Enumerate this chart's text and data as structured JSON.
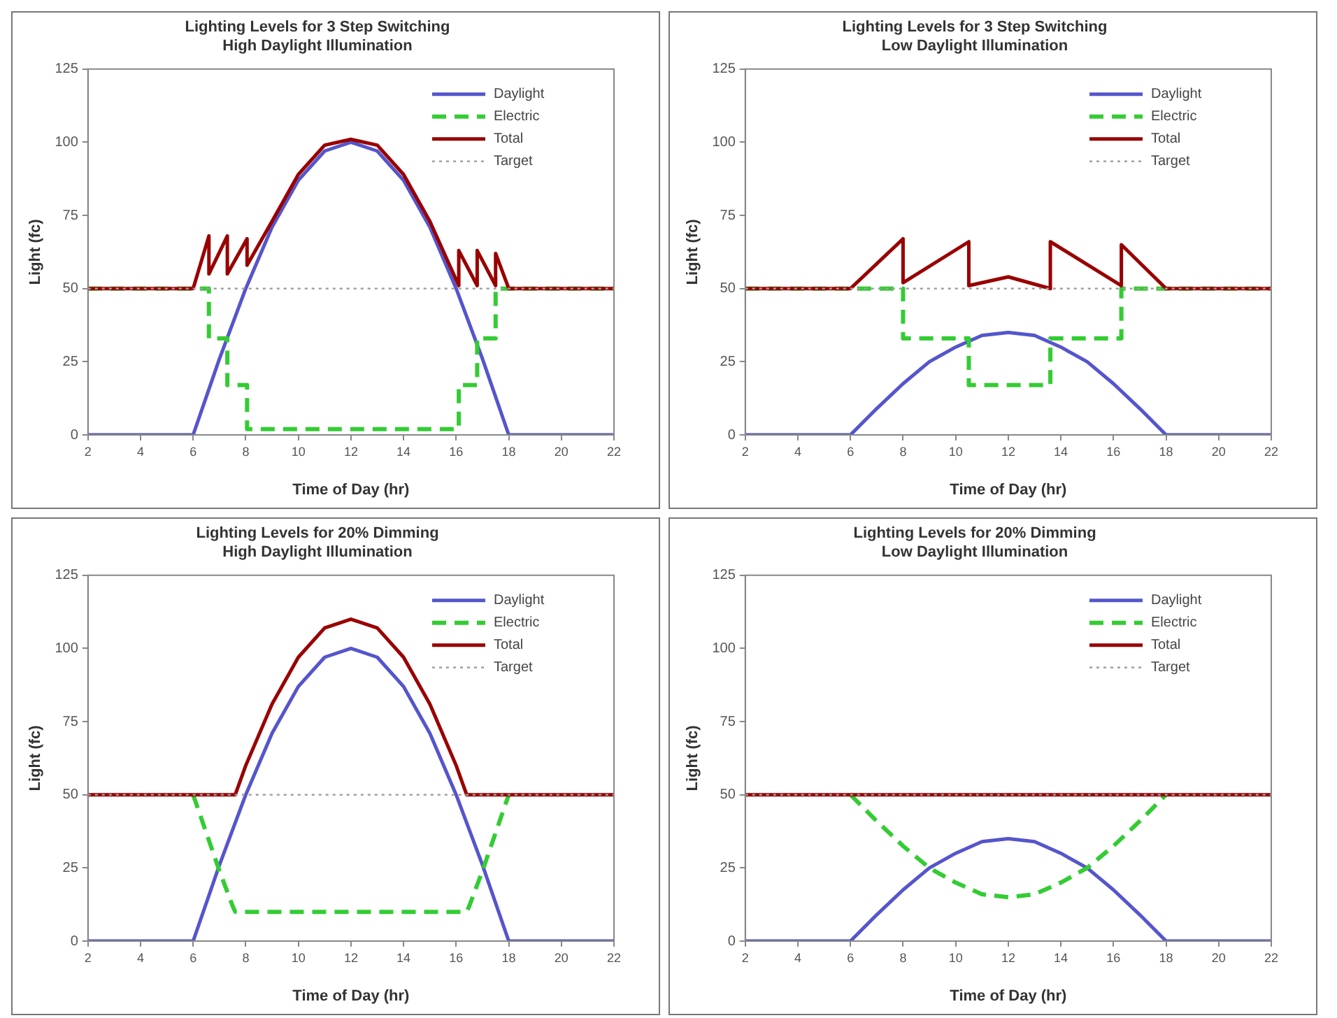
{
  "chart_data": [
    {
      "type": "line",
      "title": "Lighting Levels for 3 Step Switching",
      "subtitle": "High Daylight Illumination",
      "xlabel": "Time of Day (hr)",
      "ylabel": "Light (fc)",
      "xlim": [
        2,
        22
      ],
      "xticks": [
        2,
        4,
        6,
        8,
        10,
        12,
        14,
        16,
        18,
        20,
        22
      ],
      "ylim": [
        0,
        125
      ],
      "yticks": [
        0,
        25,
        50,
        75,
        100,
        125
      ],
      "legend": "top right",
      "series": [
        {
          "name": "Daylight",
          "color": "#5555cc",
          "line_style": "solid",
          "x": [
            2,
            6,
            7,
            8,
            9,
            10,
            11,
            12,
            13,
            14,
            15,
            16,
            17,
            18,
            22
          ],
          "values": [
            0,
            0,
            26,
            50,
            71,
            87,
            97,
            100,
            97,
            87,
            71,
            50,
            26,
            0,
            0
          ]
        },
        {
          "name": "Electric",
          "color": "#33cc33",
          "line_style": "dashed",
          "x": [
            2,
            6.6,
            6.6,
            7.3,
            7.3,
            8.05,
            8.05,
            16.1,
            16.1,
            16.8,
            16.8,
            17.5,
            17.5,
            22
          ],
          "values": [
            50,
            50,
            33,
            33,
            17,
            17,
            2,
            2,
            17,
            17,
            33,
            33,
            50,
            50
          ]
        },
        {
          "name": "Total",
          "color": "#990000",
          "line_style": "solid",
          "x": [
            2,
            6,
            6.6,
            6.6,
            7.3,
            7.3,
            8.05,
            8.05,
            9,
            10,
            11,
            12,
            13,
            14,
            15,
            16.1,
            16.1,
            16.8,
            16.8,
            17.5,
            17.5,
            18,
            22
          ],
          "values": [
            50,
            50,
            68,
            55,
            68,
            55,
            67,
            58,
            73,
            89,
            99,
            101,
            99,
            89,
            73,
            51,
            63,
            51,
            63,
            51,
            62,
            50,
            50
          ]
        },
        {
          "name": "Target",
          "color": "#a0a0a0",
          "line_style": "dotted",
          "x": [
            2,
            22
          ],
          "values": [
            50,
            50
          ]
        }
      ]
    },
    {
      "type": "line",
      "title": "Lighting Levels for 3 Step Switching",
      "subtitle": "Low Daylight Illumination",
      "xlabel": "Time of Day (hr)",
      "ylabel": "Light (fc)",
      "xlim": [
        2,
        22
      ],
      "xticks": [
        2,
        4,
        6,
        8,
        10,
        12,
        14,
        16,
        18,
        20,
        22
      ],
      "ylim": [
        0,
        125
      ],
      "yticks": [
        0,
        25,
        50,
        75,
        100,
        125
      ],
      "legend": "top right",
      "series": [
        {
          "name": "Daylight",
          "color": "#5555cc",
          "line_style": "solid",
          "x": [
            2,
            6,
            7,
            8,
            9,
            10,
            11,
            12,
            13,
            14,
            15,
            16,
            17,
            18,
            22
          ],
          "values": [
            0,
            0,
            9,
            17.5,
            25,
            30,
            34,
            35,
            34,
            30,
            25,
            17.5,
            9,
            0,
            0
          ]
        },
        {
          "name": "Electric",
          "color": "#33cc33",
          "line_style": "dashed",
          "x": [
            2,
            8,
            8,
            10.5,
            10.5,
            13.6,
            13.6,
            16.3,
            16.3,
            22
          ],
          "values": [
            50,
            50,
            33,
            33,
            17,
            17,
            33,
            33,
            50,
            50
          ]
        },
        {
          "name": "Total",
          "color": "#990000",
          "line_style": "solid",
          "x": [
            2,
            6,
            8,
            8,
            10.5,
            10.5,
            12,
            13.6,
            13.6,
            16.3,
            16.3,
            18,
            22
          ],
          "values": [
            50,
            50,
            67,
            52,
            66,
            51,
            54,
            50,
            66,
            51,
            65,
            50,
            50
          ]
        },
        {
          "name": "Target",
          "color": "#a0a0a0",
          "line_style": "dotted",
          "x": [
            2,
            22
          ],
          "values": [
            50,
            50
          ]
        }
      ]
    },
    {
      "type": "line",
      "title": "Lighting Levels for 20% Dimming",
      "subtitle": "High Daylight Illumination",
      "xlabel": "Time of Day (hr)",
      "ylabel": "Light (fc)",
      "xlim": [
        2,
        22
      ],
      "xticks": [
        2,
        4,
        6,
        8,
        10,
        12,
        14,
        16,
        18,
        20,
        22
      ],
      "ylim": [
        0,
        125
      ],
      "yticks": [
        0,
        25,
        50,
        75,
        100,
        125
      ],
      "legend": "top right",
      "series": [
        {
          "name": "Daylight",
          "color": "#5555cc",
          "line_style": "solid",
          "x": [
            2,
            6,
            7,
            8,
            9,
            10,
            11,
            12,
            13,
            14,
            15,
            16,
            17,
            18,
            22
          ],
          "values": [
            0,
            0,
            26,
            50,
            71,
            87,
            97,
            100,
            97,
            87,
            71,
            50,
            26,
            0,
            0
          ]
        },
        {
          "name": "Electric",
          "color": "#33cc33",
          "line_style": "dashed",
          "x": [
            6,
            6.5,
            7,
            7.5,
            7.6,
            16.4,
            16.5,
            17,
            17.5,
            18
          ],
          "values": [
            50,
            37,
            24,
            12,
            10,
            10,
            12,
            24,
            37,
            50
          ]
        },
        {
          "name": "Total",
          "color": "#990000",
          "line_style": "solid",
          "x": [
            2,
            7.6,
            8,
            9,
            10,
            11,
            12,
            13,
            14,
            15,
            16,
            16.4,
            22
          ],
          "values": [
            50,
            50,
            60,
            81,
            97,
            107,
            110,
            107,
            97,
            81,
            60,
            50,
            50
          ]
        },
        {
          "name": "Target",
          "color": "#a0a0a0",
          "line_style": "dotted",
          "x": [
            2,
            22
          ],
          "values": [
            50,
            50
          ]
        }
      ]
    },
    {
      "type": "line",
      "title": "Lighting Levels for 20% Dimming",
      "subtitle": "Low Daylight Illumination",
      "xlabel": "Time of Day (hr)",
      "ylabel": "Light (fc)",
      "xlim": [
        2,
        22
      ],
      "xticks": [
        2,
        4,
        6,
        8,
        10,
        12,
        14,
        16,
        18,
        20,
        22
      ],
      "ylim": [
        0,
        125
      ],
      "yticks": [
        0,
        25,
        50,
        75,
        100,
        125
      ],
      "legend": "top right",
      "series": [
        {
          "name": "Daylight",
          "color": "#5555cc",
          "line_style": "solid",
          "x": [
            2,
            6,
            7,
            8,
            9,
            10,
            11,
            12,
            13,
            14,
            15,
            16,
            17,
            18,
            22
          ],
          "values": [
            0,
            0,
            9,
            17.5,
            25,
            30,
            34,
            35,
            34,
            30,
            25,
            17.5,
            9,
            0,
            0
          ]
        },
        {
          "name": "Electric",
          "color": "#33cc33",
          "line_style": "dashed",
          "x": [
            6,
            7,
            8,
            9,
            10,
            11,
            12,
            13,
            14,
            15,
            16,
            17,
            18
          ],
          "values": [
            50,
            41,
            32.5,
            25,
            20,
            16,
            15,
            16,
            20,
            25,
            32.5,
            41,
            50
          ]
        },
        {
          "name": "Total",
          "color": "#990000",
          "line_style": "solid",
          "x": [
            2,
            22
          ],
          "values": [
            50,
            50
          ]
        },
        {
          "name": "Target",
          "color": "#a0a0a0",
          "line_style": "dotted",
          "x": [
            2,
            22
          ],
          "values": [
            50,
            50
          ]
        }
      ]
    }
  ]
}
